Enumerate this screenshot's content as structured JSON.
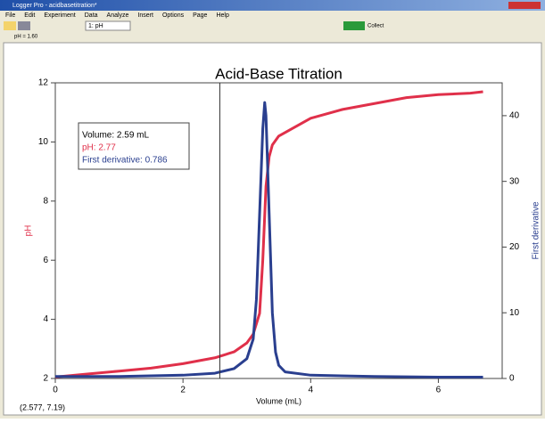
{
  "window": {
    "title": "Logger Pro - acidbasetitration*",
    "menu": [
      "File",
      "Edit",
      "Experiment",
      "Data",
      "Analyze",
      "Insert",
      "Options",
      "Page",
      "Help"
    ],
    "toolbar": {
      "sensor": "1: pH",
      "collect": "Collect"
    },
    "meter": "pH = 1.60",
    "status": "(2.577, 7.19)"
  },
  "chart_data": {
    "type": "line",
    "title": "Acid-Base Titration",
    "xlabel": "Volume (mL)",
    "ylabel": "pH",
    "y2label": "First derivative",
    "xlim": [
      0,
      7
    ],
    "xticks": [
      0,
      2,
      4,
      6
    ],
    "ylim": [
      2,
      12
    ],
    "yticks": [
      2,
      4,
      6,
      8,
      10,
      12
    ],
    "y2lim": [
      0,
      45
    ],
    "y2ticks": [
      0,
      10,
      20,
      30,
      40
    ],
    "series": [
      {
        "name": "pH",
        "color": "#e0304a",
        "x": [
          0,
          0.5,
          1,
          1.5,
          2,
          2.5,
          2.8,
          3.0,
          3.1,
          3.2,
          3.25,
          3.3,
          3.35,
          3.4,
          3.5,
          4,
          4.5,
          5,
          5.5,
          6,
          6.5,
          6.7
        ],
        "values": [
          2.05,
          2.15,
          2.25,
          2.35,
          2.5,
          2.7,
          2.9,
          3.2,
          3.5,
          4.2,
          6,
          8.5,
          9.5,
          9.9,
          10.2,
          10.8,
          11.1,
          11.3,
          11.5,
          11.6,
          11.65,
          11.7
        ]
      },
      {
        "name": "First derivative",
        "color": "#2a3f8f",
        "axis": "y2",
        "x": [
          0,
          1,
          2,
          2.5,
          2.8,
          3.0,
          3.1,
          3.15,
          3.2,
          3.25,
          3.28,
          3.3,
          3.35,
          3.4,
          3.45,
          3.5,
          3.6,
          4,
          5,
          6,
          6.7
        ],
        "values": [
          0.3,
          0.3,
          0.5,
          0.8,
          1.5,
          3,
          6,
          12,
          25,
          38,
          42,
          40,
          25,
          10,
          4,
          2,
          1,
          0.5,
          0.3,
          0.2,
          0.2
        ]
      }
    ],
    "cursor": {
      "x": 2.577,
      "lines": [
        "Volume: 2.59 mL",
        "pH: 2.77",
        "First derivative: 0.786"
      ]
    }
  }
}
